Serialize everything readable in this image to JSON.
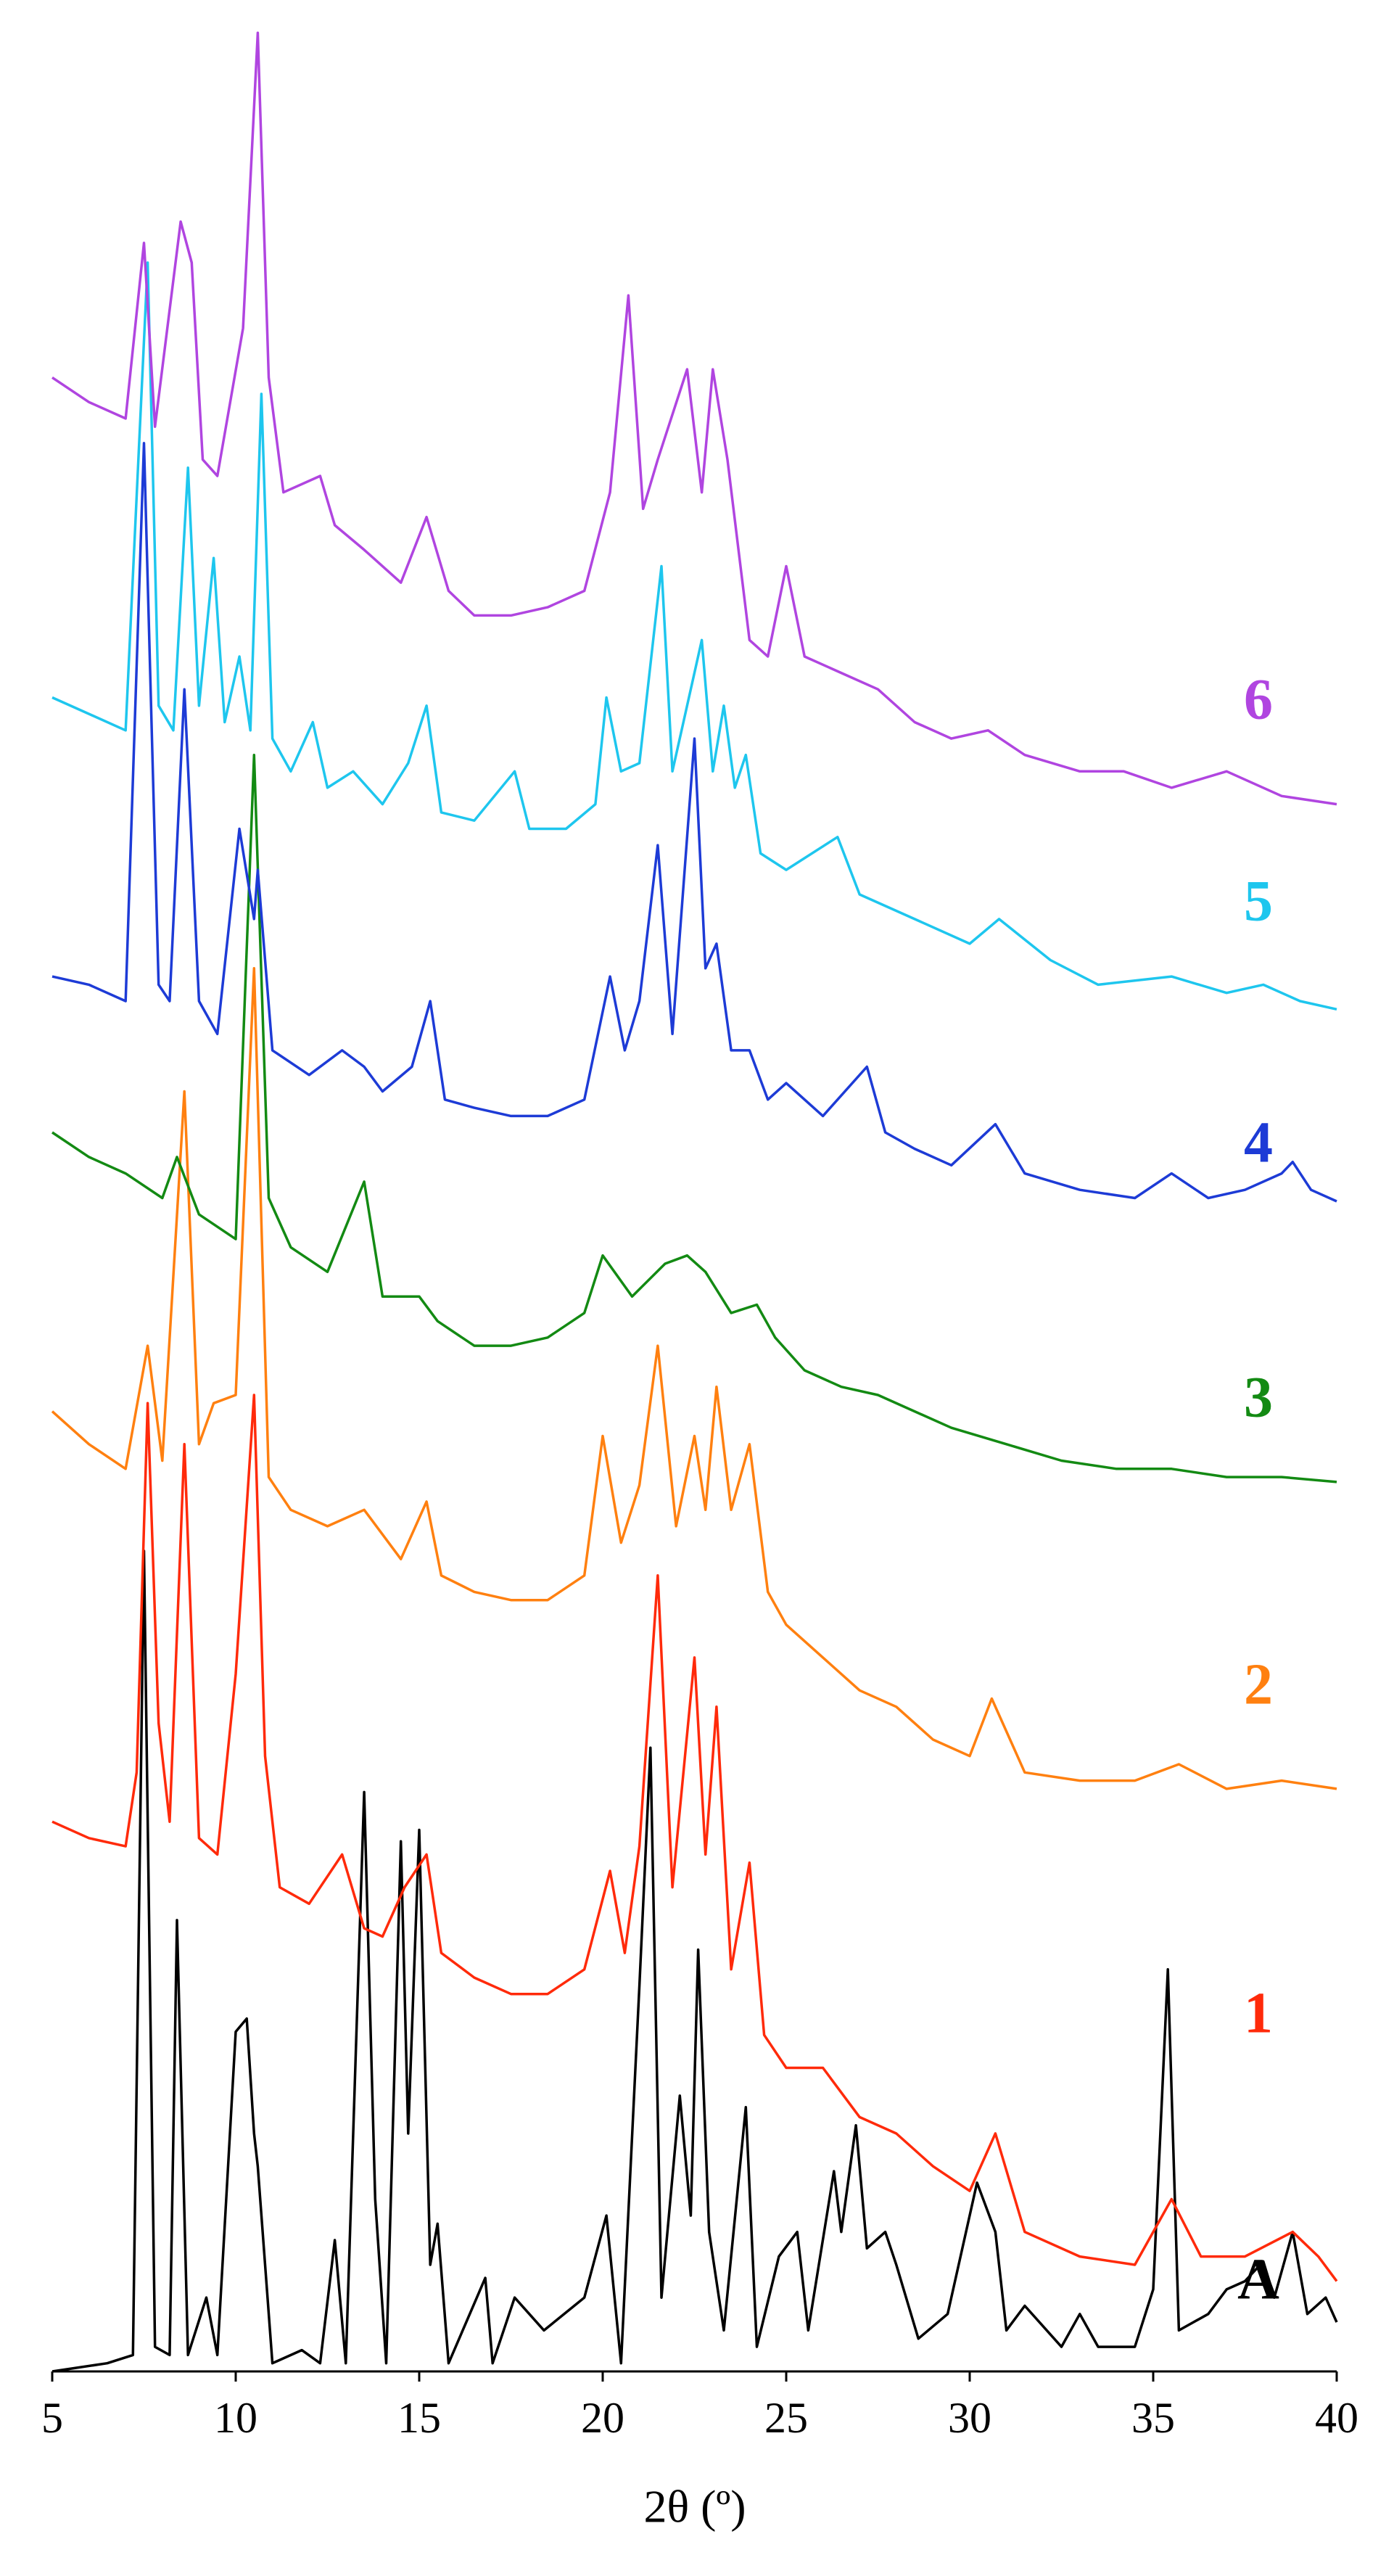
{
  "chart_data": {
    "type": "line",
    "xlabel": "2θ (º)",
    "xlim": [
      5,
      40
    ],
    "xticks": [
      5,
      10,
      15,
      20,
      25,
      30,
      35,
      40
    ],
    "ylim": [
      0,
      1430
    ],
    "series": [
      {
        "name": "A",
        "color": "#000000",
        "x": [
          5,
          6.5,
          7.2,
          7.5,
          7.8,
          8.2,
          8.4,
          8.7,
          9.2,
          9.5,
          10.0,
          10.3,
          10.5,
          10.6,
          11,
          11.8,
          12.3,
          12.7,
          13.0,
          13.5,
          13.8,
          14.1,
          14.5,
          14.7,
          15.0,
          15.3,
          15.5,
          15.8,
          16.8,
          17.0,
          17.6,
          18.4,
          19.5,
          20.1,
          20.5,
          21.0,
          21.3,
          21.6,
          22.1,
          22.4,
          22.6,
          22.9,
          23.3,
          23.9,
          24.2,
          24.8,
          25.3,
          25.6,
          26.3,
          26.5,
          26.9,
          27.2,
          27.7,
          28.0,
          28.6,
          29.4,
          30.2,
          30.7,
          31.0,
          31.5,
          32.5,
          33.0,
          33.5,
          34.5,
          35.0,
          35.4,
          35.7,
          36.5,
          37.0,
          37.5,
          38.0,
          38.3,
          38.8,
          39.2,
          39.7,
          40
        ],
        "values": [
          0,
          5,
          10,
          500,
          15,
          10,
          275,
          10,
          45,
          10,
          207,
          215,
          145,
          125,
          5,
          13,
          5,
          80,
          5,
          353,
          105,
          5,
          323,
          145,
          330,
          65,
          90,
          5,
          57,
          5,
          45,
          25,
          45,
          95,
          5,
          235,
          380,
          45,
          168,
          95,
          257,
          85,
          25,
          161,
          15,
          70,
          85,
          25,
          122,
          85,
          150,
          75,
          85,
          65,
          20,
          35,
          115,
          85,
          25,
          40,
          15,
          35,
          15,
          15,
          50,
          245,
          25,
          35,
          50,
          55,
          67,
          45,
          85,
          35,
          45,
          30
        ]
      },
      {
        "name": "1",
        "color": "#ff2a0a",
        "x": [
          5,
          6,
          7,
          7.3,
          7.6,
          7.9,
          8.2,
          8.6,
          9.0,
          9.5,
          10.0,
          10.5,
          10.8,
          11.2,
          12,
          12.9,
          13.5,
          14,
          14.6,
          15.2,
          15.6,
          16.5,
          17.5,
          18.5,
          19.5,
          20.2,
          20.6,
          21,
          21.5,
          21.9,
          22.5,
          22.8,
          23.1,
          23.5,
          24.0,
          24.4,
          25,
          26,
          27,
          28,
          29,
          30,
          30.7,
          31.5,
          33,
          34.5,
          35.5,
          36.3,
          37.5,
          38.8,
          39.5,
          40
        ],
        "values": [
          335,
          325,
          320,
          365,
          590,
          395,
          335,
          565,
          325,
          315,
          425,
          595,
          375,
          295,
          285,
          315,
          270,
          265,
          295,
          315,
          255,
          240,
          230,
          230,
          245,
          305,
          255,
          320,
          485,
          295,
          435,
          315,
          405,
          245,
          310,
          205,
          185,
          185,
          155,
          145,
          125,
          110,
          145,
          85,
          70,
          65,
          105,
          70,
          70,
          85,
          70,
          55
        ]
      },
      {
        "name": "2",
        "color": "#ff8010",
        "x": [
          5,
          6,
          7,
          7.6,
          8.0,
          8.6,
          9.0,
          9.4,
          10.0,
          10.5,
          10.9,
          11.5,
          12.5,
          13.5,
          14.5,
          15.2,
          15.6,
          16.5,
          17.5,
          18.5,
          19.5,
          20.0,
          20.5,
          21,
          21.5,
          22,
          22.5,
          22.8,
          23.1,
          23.5,
          24,
          24.5,
          25,
          26,
          27,
          28,
          29,
          30,
          30.6,
          31.5,
          33,
          34.5,
          35.7,
          37,
          38.5,
          40
        ],
        "values": [
          585,
          565,
          550,
          625,
          555,
          780,
          565,
          590,
          595,
          855,
          545,
          525,
          515,
          525,
          495,
          530,
          485,
          475,
          470,
          470,
          485,
          570,
          505,
          540,
          625,
          515,
          570,
          525,
          600,
          525,
          565,
          475,
          455,
          435,
          415,
          405,
          385,
          375,
          410,
          365,
          360,
          360,
          370,
          355,
          360,
          355
        ]
      },
      {
        "name": "3",
        "color": "#138a13",
        "x": [
          5,
          6,
          7,
          8,
          8.4,
          9,
          10,
          10.5,
          10.9,
          11.5,
          12.5,
          13.5,
          14,
          15,
          15.5,
          16.5,
          17.5,
          18.5,
          19.5,
          20,
          20.8,
          21.7,
          22.3,
          22.8,
          23.5,
          24.2,
          24.7,
          25.5,
          26.5,
          27.5,
          28.5,
          29.5,
          31,
          32.5,
          34,
          35.5,
          37,
          38.5,
          40
        ],
        "values": [
          755,
          740,
          730,
          715,
          740,
          705,
          690,
          985,
          715,
          685,
          670,
          725,
          655,
          655,
          640,
          625,
          625,
          630,
          645,
          680,
          655,
          675,
          680,
          670,
          645,
          650,
          630,
          610,
          600,
          595,
          585,
          575,
          565,
          555,
          550,
          550,
          545,
          545,
          542
        ]
      },
      {
        "name": "4",
        "color": "#1d3bd6",
        "x": [
          5,
          6,
          7,
          7.5,
          7.9,
          8.2,
          8.6,
          9.0,
          9.5,
          10.1,
          10.5,
          10.6,
          11,
          12,
          12.9,
          13.5,
          14,
          14.8,
          15.3,
          15.7,
          16.5,
          17.5,
          18.5,
          19.5,
          20.2,
          20.6,
          21,
          21.5,
          21.9,
          22.5,
          22.8,
          23.1,
          23.5,
          24,
          24.5,
          25,
          26,
          27.2,
          27.7,
          28.5,
          29.5,
          30.7,
          31.5,
          33,
          34.5,
          35.5,
          36.5,
          37.5,
          38.5,
          38.8,
          39.3,
          40
        ],
        "values": [
          850,
          845,
          835,
          1175,
          845,
          835,
          1025,
          835,
          815,
          940,
          885,
          915,
          805,
          790,
          805,
          795,
          780,
          795,
          835,
          775,
          770,
          765,
          765,
          775,
          850,
          805,
          835,
          930,
          815,
          995,
          855,
          870,
          805,
          805,
          775,
          785,
          765,
          795,
          755,
          745,
          735,
          760,
          730,
          720,
          715,
          730,
          715,
          720,
          730,
          737,
          720,
          713
        ]
      },
      {
        "name": "5",
        "color": "#1ec6ee",
        "x": [
          5,
          6,
          7,
          7.6,
          7.9,
          8.3,
          8.7,
          9.0,
          9.4,
          9.7,
          10.1,
          10.4,
          10.7,
          11,
          11.5,
          12.1,
          12.5,
          13.2,
          14,
          14.7,
          15.2,
          15.6,
          16.5,
          17.6,
          18,
          19,
          19.8,
          20.1,
          20.5,
          21,
          21.6,
          21.9,
          22.7,
          23,
          23.3,
          23.6,
          23.9,
          24.3,
          25,
          26.4,
          27,
          28.5,
          30,
          30.8,
          32.2,
          33.5,
          35.5,
          37,
          38,
          39,
          40
        ],
        "values": [
          1020,
          1010,
          1000,
          1285,
          1015,
          1000,
          1160,
          1015,
          1105,
          1005,
          1045,
          1000,
          1205,
          995,
          975,
          1005,
          965,
          975,
          955,
          980,
          1015,
          950,
          945,
          975,
          940,
          940,
          955,
          1020,
          975,
          980,
          1100,
          975,
          1055,
          975,
          1015,
          965,
          985,
          925,
          915,
          935,
          900,
          885,
          870,
          885,
          860,
          845,
          850,
          840,
          845,
          835,
          830
        ]
      },
      {
        "name": "6",
        "color": "#b045e0",
        "x": [
          5,
          6,
          7,
          7.5,
          7.8,
          8.5,
          8.8,
          9.1,
          9.5,
          10.2,
          10.6,
          10.9,
          11.3,
          12.3,
          12.7,
          13.5,
          14.5,
          15.2,
          15.8,
          16.5,
          17.5,
          18.5,
          19.5,
          20.2,
          20.7,
          21.1,
          21.5,
          22.3,
          22.7,
          23.0,
          23.4,
          24,
          24.5,
          25,
          25.5,
          26.5,
          27.5,
          28.5,
          29.5,
          30.5,
          31.5,
          33,
          34.2,
          35.5,
          37,
          38.5,
          40
        ],
        "values": [
          1215,
          1200,
          1190,
          1297,
          1185,
          1310,
          1285,
          1165,
          1155,
          1245,
          1425,
          1215,
          1145,
          1155,
          1125,
          1110,
          1090,
          1130,
          1085,
          1070,
          1070,
          1075,
          1085,
          1145,
          1265,
          1135,
          1165,
          1220,
          1145,
          1220,
          1165,
          1055,
          1045,
          1100,
          1045,
          1035,
          1025,
          1005,
          995,
          1000,
          985,
          975,
          975,
          965,
          975,
          960,
          955
        ]
      }
    ]
  }
}
